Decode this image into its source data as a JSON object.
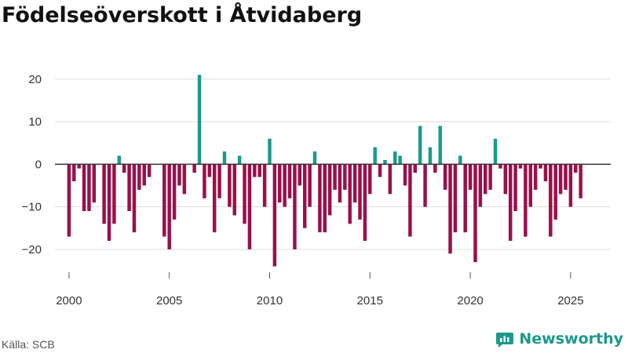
{
  "title": "Födelseöverskott i Åtvidaberg",
  "source": "Källa: SCB",
  "brand": "Newsworthy",
  "colors": {
    "positive": "#1a9a8c",
    "negative": "#9b0f4a",
    "grid": "#dddddd",
    "zero": "#333333"
  },
  "chart_data": {
    "type": "bar",
    "title": "Födelseöverskott i Åtvidaberg",
    "xlabel": "",
    "ylabel": "",
    "xlim": [
      1999.3,
      2027.0
    ],
    "ylim": [
      -25,
      22
    ],
    "yticks": [
      20,
      10,
      0,
      -10,
      -20
    ],
    "xticks": [
      2000,
      2005,
      2010,
      2015,
      2020,
      2025
    ],
    "frequency": "quarterly",
    "start": 2000.0,
    "values": [
      -17,
      -4,
      -1,
      -11,
      -11,
      -9,
      0,
      -14,
      -18,
      -14,
      2,
      -2,
      -11,
      -16,
      -6,
      -5,
      -3,
      0,
      0,
      -17,
      -20,
      -13,
      -5,
      -7,
      0,
      -2,
      21,
      -8,
      -3,
      -16,
      -8,
      3,
      -10,
      -12,
      2,
      -14,
      -20,
      -3,
      -3,
      -10,
      6,
      -24,
      -9,
      -10,
      -8,
      -20,
      -5,
      -15,
      -10,
      3,
      -16,
      -16,
      -12,
      -6,
      -9,
      -6,
      -14,
      -9,
      -13,
      -18,
      -7,
      4,
      -3,
      1,
      -7,
      3,
      2,
      -5,
      -17,
      -2,
      9,
      -10,
      4,
      -2,
      9,
      -6,
      -21,
      -16,
      2,
      -16,
      -6,
      -23,
      -10,
      -7,
      -6,
      6,
      -1,
      -7,
      -18,
      -11,
      -1,
      -17,
      -10,
      -6,
      -1,
      -4,
      -17,
      -13,
      -7,
      -6,
      -10,
      -2,
      -8
    ]
  }
}
